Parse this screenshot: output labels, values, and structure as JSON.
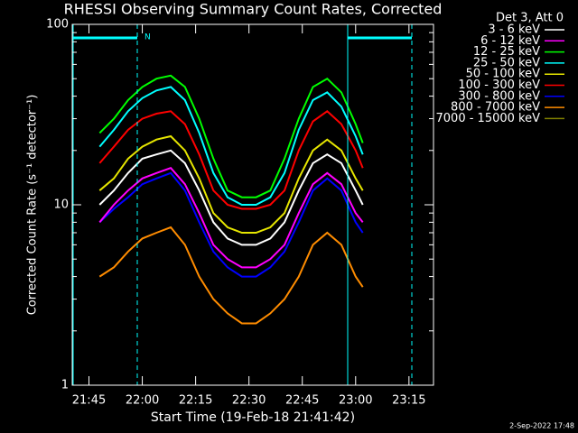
{
  "chart_data": {
    "type": "line",
    "title": "RHESSI Observing Summary Count Rates, Corrected",
    "x_label": "Start Time (19-Feb-18 21:41:42)",
    "y_label": "Corrected Count Rate (s⁻¹ detector⁻¹)",
    "legend_title": "Det 3, Att 0",
    "legend": "upper-right",
    "footer": "2-Sep-2022 17:48",
    "annotation": "N",
    "log_y": true,
    "xlim": [
      "21:40:18",
      "23:21:54"
    ],
    "xticks": [
      "21:45",
      "22:00",
      "22:15",
      "22:30",
      "22:45",
      "23:00",
      "23:15"
    ],
    "ylim": [
      1,
      100
    ],
    "yticks": [
      1,
      10,
      100
    ],
    "x": [
      "21:48",
      "21:52",
      "21:56",
      "22:00",
      "22:04",
      "22:08",
      "22:12",
      "22:16",
      "22:20",
      "22:24",
      "22:28",
      "22:32",
      "22:36",
      "22:40",
      "22:44",
      "22:48",
      "22:52",
      "22:56",
      "23:00",
      "23:02"
    ],
    "series": [
      {
        "name": "3 - 6 keV",
        "color": "#ffffff",
        "values": [
          10,
          12,
          15,
          18,
          19,
          20,
          17,
          12,
          8,
          6.5,
          6,
          6,
          6.5,
          8,
          12,
          17,
          19,
          17,
          12,
          10
        ]
      },
      {
        "name": "6 - 12 keV",
        "color": "#ff00ff",
        "values": [
          8,
          10,
          12,
          14,
          15,
          16,
          13,
          9,
          6,
          5,
          4.5,
          4.5,
          5,
          6,
          9,
          13,
          15,
          13,
          9,
          8
        ]
      },
      {
        "name": "12 - 25 keV",
        "color": "#00ff00",
        "values": [
          25,
          30,
          38,
          45,
          50,
          52,
          45,
          30,
          18,
          12,
          11,
          11,
          12,
          18,
          30,
          45,
          50,
          42,
          28,
          22
        ]
      },
      {
        "name": "25 - 50 keV",
        "color": "#00ffff",
        "values": [
          21,
          26,
          33,
          39,
          43,
          45,
          38,
          25,
          15,
          11,
          10,
          10,
          11,
          15,
          26,
          38,
          42,
          35,
          24,
          19
        ]
      },
      {
        "name": "50 - 100 keV",
        "color": "#e6e600",
        "values": [
          12,
          14,
          18,
          21,
          23,
          24,
          20,
          14,
          9,
          7.5,
          7,
          7,
          7.5,
          9,
          14,
          20,
          23,
          20,
          14,
          12
        ]
      },
      {
        "name": "100 - 300 keV",
        "color": "#ff0000",
        "values": [
          17,
          21,
          26,
          30,
          32,
          33,
          28,
          19,
          12,
          10,
          9.5,
          9.5,
          10,
          12,
          20,
          29,
          33,
          28,
          20,
          16
        ]
      },
      {
        "name": "300 - 800 keV",
        "color": "#0000ff",
        "values": [
          8,
          9.5,
          11,
          13,
          14,
          15,
          12,
          8,
          5.5,
          4.5,
          4,
          4,
          4.5,
          5.5,
          8,
          12,
          14,
          12,
          8,
          7
        ]
      },
      {
        "name": "800 - 7000 keV",
        "color": "#ff8c00",
        "values": [
          4,
          4.5,
          5.5,
          6.5,
          7,
          7.5,
          6,
          4,
          3,
          2.5,
          2.2,
          2.2,
          2.5,
          3,
          4,
          6,
          7,
          6,
          4,
          3.5
        ]
      },
      {
        "name": "7000 - 15000 keV",
        "color": "#808000",
        "values": [
          null,
          null,
          null,
          null,
          null,
          null,
          null,
          null,
          null,
          null,
          null,
          null,
          null,
          null,
          null,
          null,
          null,
          null,
          null,
          null
        ]
      }
    ]
  }
}
